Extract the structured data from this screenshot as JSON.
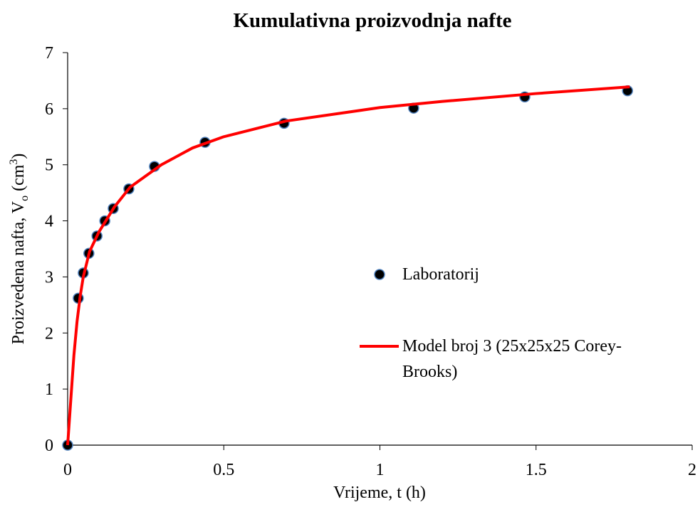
{
  "chart_data": {
    "type": "scatter",
    "title": "Kumulativna proizvodnja nafte",
    "x_label": "Vrijeme, t (h)",
    "y_label_parts": [
      "Proizvedena nafta, V",
      "o",
      " (cm",
      "3",
      ")"
    ],
    "xlim": [
      0,
      2
    ],
    "ylim": [
      0,
      7
    ],
    "xticks": [
      0,
      0.5,
      1,
      1.5,
      2
    ],
    "yticks": [
      0,
      1,
      2,
      3,
      4,
      5,
      6,
      7
    ],
    "grid": false,
    "legend": "center-right",
    "series": [
      {
        "name": "Laboratorij",
        "type": "scatter",
        "color": "#000000",
        "edgecolor": "#4f81bd",
        "x": [
          0,
          0.034,
          0.05,
          0.068,
          0.094,
          0.119,
          0.146,
          0.196,
          0.278,
          0.44,
          0.693,
          1.108,
          1.464,
          1.793
        ],
        "values": [
          0,
          2.62,
          3.07,
          3.42,
          3.73,
          4.0,
          4.22,
          4.57,
          4.97,
          5.4,
          5.74,
          6.01,
          6.21,
          6.32
        ]
      },
      {
        "name": "Model broj 3 (25x25x25 Corey-Brooks)",
        "type": "line",
        "color": "#ff0000",
        "x": [
          0,
          0.01,
          0.02,
          0.03,
          0.04,
          0.05,
          0.07,
          0.1,
          0.15,
          0.2,
          0.3,
          0.4,
          0.5,
          0.7,
          1.0,
          1.2,
          1.5,
          1.8
        ],
        "values": [
          0,
          0.8,
          1.6,
          2.2,
          2.65,
          3.0,
          3.45,
          3.8,
          4.25,
          4.6,
          5.0,
          5.3,
          5.5,
          5.78,
          6.02,
          6.13,
          6.27,
          6.39
        ]
      }
    ]
  }
}
